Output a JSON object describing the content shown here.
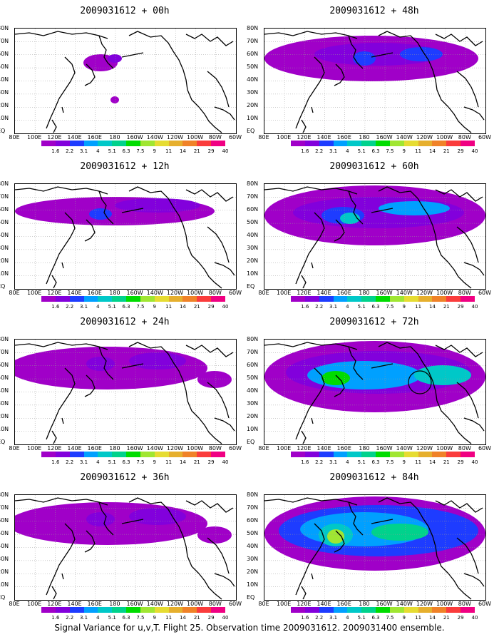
{
  "panels": [
    {
      "title": "2009031612 + 00h",
      "level": 0
    },
    {
      "title": "2009031612 + 48h",
      "level": 3
    },
    {
      "title": "2009031612 + 12h",
      "level": 1
    },
    {
      "title": "2009031612 + 60h",
      "level": 4
    },
    {
      "title": "2009031612 + 24h",
      "level": 2
    },
    {
      "title": "2009031612 + 72h",
      "level": 5,
      "circle": true
    },
    {
      "title": "2009031612 + 36h",
      "level": 2
    },
    {
      "title": "2009031612 + 84h",
      "level": 6
    }
  ],
  "lat_labels": [
    "80N",
    "70N",
    "60N",
    "50N",
    "40N",
    "30N",
    "20N",
    "10N",
    "EQ"
  ],
  "lon_labels": [
    "80E",
    "100E",
    "120E",
    "140E",
    "160E",
    "180",
    "160W",
    "140W",
    "120W",
    "100W",
    "80W",
    "60W"
  ],
  "colorbar": {
    "labels": [
      "1.6",
      "2.2",
      "3.1",
      "4",
      "5.1",
      "6.3",
      "7.5",
      "9",
      "11",
      "14",
      "21",
      "29",
      "40"
    ],
    "colors": [
      "#a000c8",
      "#8200dc",
      "#1e3cff",
      "#00a0ff",
      "#00c8c8",
      "#00d28c",
      "#00dc00",
      "#a0e632",
      "#e6dc32",
      "#e6af2d",
      "#f08228",
      "#fa3c3c",
      "#f00082"
    ]
  },
  "caption": "Signal Variance for u,v,T. Flight 25. Observation time 2009031612. 2009031400 ensemble."
}
